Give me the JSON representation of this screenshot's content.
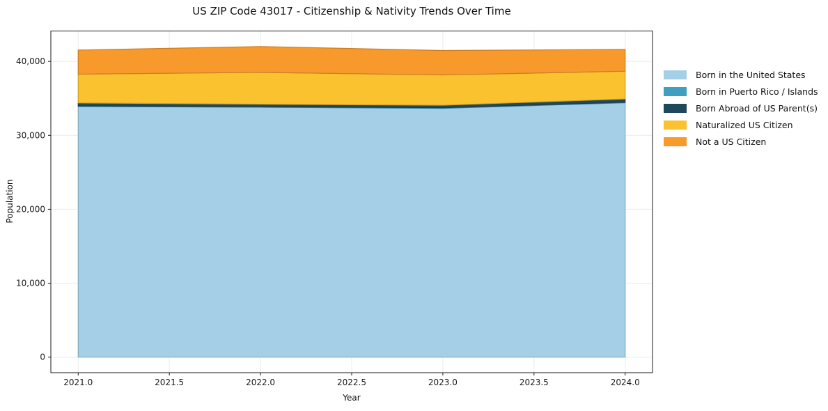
{
  "figure": {
    "title": "US ZIP Code 43017 - Citizenship & Nativity Trends Over Time",
    "xlabel": "Year",
    "ylabel": "Population"
  },
  "chart_data": {
    "type": "area",
    "stacked": true,
    "title": "US ZIP Code 43017 - Citizenship & Nativity Trends Over Time",
    "xlabel": "Year",
    "ylabel": "Population",
    "x": [
      2021,
      2022,
      2023,
      2024
    ],
    "series": [
      {
        "name": "Born in the United States",
        "color": "#a5cfe6",
        "values": [
          33900,
          33800,
          33650,
          34400
        ]
      },
      {
        "name": "Born in Puerto Rico / Islands",
        "color": "#3e9fc0",
        "values": [
          80,
          80,
          80,
          80
        ]
      },
      {
        "name": "Born Abroad of US Parent(s)",
        "color": "#20485c",
        "values": [
          400,
          330,
          340,
          440
        ]
      },
      {
        "name": "Naturalized US Citizen",
        "color": "#fbc230",
        "values": [
          3900,
          4300,
          4100,
          3750
        ]
      },
      {
        "name": "Not a US Citizen",
        "color": "#f8992b",
        "values": [
          3250,
          3500,
          3300,
          2950
        ]
      }
    ],
    "xlim": [
      2020.85,
      2024.15
    ],
    "ylim": [
      -2100,
      44110
    ],
    "x_ticks": [
      {
        "value": 2021.0,
        "label": "2021.0"
      },
      {
        "value": 2021.5,
        "label": "2021.5"
      },
      {
        "value": 2022.0,
        "label": "2022.0"
      },
      {
        "value": 2022.5,
        "label": "2022.5"
      },
      {
        "value": 2023.0,
        "label": "2023.0"
      },
      {
        "value": 2023.5,
        "label": "2023.5"
      },
      {
        "value": 2024.0,
        "label": "2024.0"
      }
    ],
    "y_ticks": [
      {
        "value": 0,
        "label": "0"
      },
      {
        "value": 10000,
        "label": "10,000"
      },
      {
        "value": 20000,
        "label": "20,000"
      },
      {
        "value": 30000,
        "label": "30,000"
      },
      {
        "value": 40000,
        "label": "40,000"
      }
    ],
    "grid": true,
    "legend_position": "right",
    "styles": {
      "grid_color": "#ebebeb",
      "spine_color": "#1a1a1a",
      "background": "#ffffff"
    }
  }
}
